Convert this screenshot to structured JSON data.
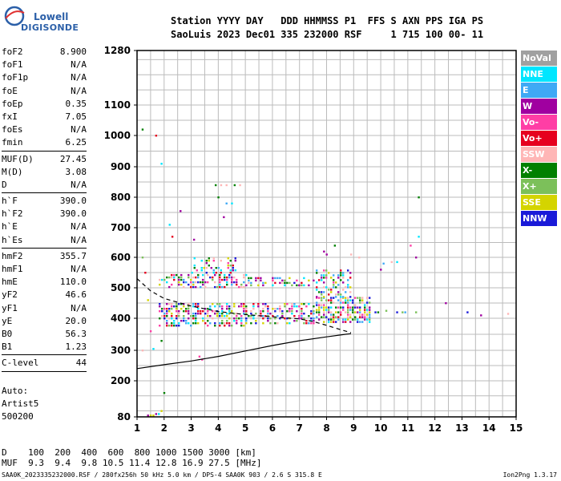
{
  "logo": {
    "line1": "Lowell",
    "line2": "DIGISONDE"
  },
  "header": {
    "line1": "Station YYYY DAY   DDD HHMMSS P1  FFS S AXN PPS IGA PS",
    "line2": "SaoLuis 2023 Dec01 335 232000 RSF     1 715 100 00- 11"
  },
  "params": {
    "group1": [
      {
        "name": "foF2",
        "value": "8.900"
      },
      {
        "name": "foF1",
        "value": "N/A"
      },
      {
        "name": "foF1p",
        "value": "N/A"
      },
      {
        "name": "foE",
        "value": "N/A"
      },
      {
        "name": "foEp",
        "value": "0.35"
      },
      {
        "name": "fxI",
        "value": "7.05"
      },
      {
        "name": "foEs",
        "value": "N/A"
      },
      {
        "name": "fmin",
        "value": "6.25"
      }
    ],
    "group2": [
      {
        "name": "MUF(D)",
        "value": "27.45"
      },
      {
        "name": "M(D)",
        "value": "3.08"
      },
      {
        "name": "D",
        "value": "N/A"
      }
    ],
    "group3": [
      {
        "name": "h`F",
        "value": "390.0"
      },
      {
        "name": "h`F2",
        "value": "390.0"
      },
      {
        "name": "h`E",
        "value": "N/A"
      },
      {
        "name": "h`Es",
        "value": "N/A"
      }
    ],
    "group4": [
      {
        "name": "hmF2",
        "value": "355.7"
      },
      {
        "name": "hmF1",
        "value": "N/A"
      },
      {
        "name": "hmE",
        "value": "110.0"
      },
      {
        "name": "yF2",
        "value": "46.6"
      },
      {
        "name": "yF1",
        "value": "N/A"
      },
      {
        "name": "yE",
        "value": "20.0"
      },
      {
        "name": "B0",
        "value": "56.3"
      },
      {
        "name": "B1",
        "value": "1.23"
      }
    ],
    "group5": [
      {
        "name": "C-level",
        "value": "44"
      }
    ]
  },
  "auto": {
    "line1": "Auto:",
    "line2": "Artist5",
    "line3": "500200"
  },
  "dmuf": {
    "d_line": "D    100  200  400  600  800 1000 1500 3000 [km]",
    "muf_line": "MUF  9.3  9.4  9.8 10.5 11.4 12.8 16.9 27.5 [MHz]"
  },
  "footer": {
    "left": "SAA0K_2023335232000.RSF / 280fx256h 50 kHz 5.0 km / DPS-4 SAA0K 903 / 2.6 S 315.8 E",
    "right": "Ion2Png 1.3.17"
  },
  "legend": [
    {
      "label": "NoVal",
      "color": "#a0a0a0"
    },
    {
      "label": "NNE",
      "color": "#00e6ff"
    },
    {
      "label": "E",
      "color": "#3fa9f5"
    },
    {
      "label": "W",
      "color": "#a000a0"
    },
    {
      "label": "Vo-",
      "color": "#ff3ea5"
    },
    {
      "label": "Vo+",
      "color": "#e6001e"
    },
    {
      "label": "SSW",
      "color": "#ffb6b6"
    },
    {
      "label": "X-",
      "color": "#008000"
    },
    {
      "label": "X+",
      "color": "#7cc05a"
    },
    {
      "label": "SSE",
      "color": "#d4d400"
    },
    {
      "label": "NNW",
      "color": "#1a1ad8"
    }
  ],
  "chart_data": {
    "type": "scatter",
    "title": "",
    "xlabel": "",
    "ylabel": "",
    "xlim": [
      1,
      15
    ],
    "ylim": [
      80,
      1280
    ],
    "x_ticks": [
      1,
      2,
      3,
      4,
      5,
      6,
      7,
      8,
      9,
      10,
      11,
      12,
      13,
      14,
      15
    ],
    "y_ticks": [
      80,
      200,
      300,
      400,
      500,
      600,
      700,
      800,
      900,
      1000,
      1100,
      1280
    ],
    "y_scale": "nonlinear (ionogram virtual height)",
    "grid": true,
    "trace_regions": [
      {
        "x": [
          1.8,
          5.0
        ],
        "y": [
          375,
          450
        ],
        "density": 0.55
      },
      {
        "x": [
          1.8,
          5.0
        ],
        "y": [
          500,
          545
        ],
        "density": 0.45
      },
      {
        "x": [
          3.0,
          4.7
        ],
        "y": [
          545,
          600
        ],
        "density": 0.3
      },
      {
        "x": [
          5.0,
          7.5
        ],
        "y": [
          380,
          450
        ],
        "density": 0.45
      },
      {
        "x": [
          5.0,
          7.5
        ],
        "y": [
          510,
          535
        ],
        "density": 0.35
      },
      {
        "x": [
          7.6,
          9.6
        ],
        "y": [
          390,
          470
        ],
        "density": 0.65
      },
      {
        "x": [
          7.6,
          8.9
        ],
        "y": [
          470,
          560
        ],
        "density": 0.35
      }
    ],
    "scattered_points": [
      [
        1.2,
        1020
      ],
      [
        1.7,
        1000
      ],
      [
        1.9,
        910
      ],
      [
        2.2,
        710
      ],
      [
        2.3,
        670
      ],
      [
        2.6,
        755
      ],
      [
        3.1,
        660
      ],
      [
        3.9,
        840
      ],
      [
        4.1,
        840
      ],
      [
        4.3,
        840
      ],
      [
        4.6,
        840
      ],
      [
        4.8,
        840
      ],
      [
        4.0,
        800
      ],
      [
        4.3,
        780
      ],
      [
        4.5,
        780
      ],
      [
        4.2,
        735
      ],
      [
        1.2,
        600
      ],
      [
        1.3,
        550
      ],
      [
        1.4,
        460
      ],
      [
        1.5,
        360
      ],
      [
        1.6,
        305
      ],
      [
        1.9,
        330
      ],
      [
        1.4,
        85
      ],
      [
        1.5,
        85
      ],
      [
        1.6,
        85
      ],
      [
        1.7,
        90
      ],
      [
        1.8,
        90
      ],
      [
        1.9,
        100
      ],
      [
        2.0,
        160
      ],
      [
        1.2,
        300
      ],
      [
        3.3,
        280
      ],
      [
        3.4,
        270
      ],
      [
        9.8,
        420
      ],
      [
        10.0,
        560
      ],
      [
        10.1,
        580
      ],
      [
        10.4,
        585
      ],
      [
        10.6,
        585
      ],
      [
        10.8,
        420
      ],
      [
        10.9,
        420
      ],
      [
        11.1,
        640
      ],
      [
        11.3,
        600
      ],
      [
        11.4,
        800
      ],
      [
        11.4,
        670
      ],
      [
        11.3,
        420
      ],
      [
        12.4,
        450
      ],
      [
        13.2,
        420
      ],
      [
        13.7,
        410
      ],
      [
        14.7,
        415
      ],
      [
        9.9,
        420
      ],
      [
        10.2,
        425
      ],
      [
        10.6,
        420
      ],
      [
        7.9,
        620
      ],
      [
        8.0,
        610
      ],
      [
        8.3,
        640
      ],
      [
        8.9,
        610
      ],
      [
        9.2,
        600
      ]
    ],
    "curves": [
      {
        "name": "",
        "style": "solid",
        "x": [
          1.0,
          2.0,
          3.0,
          4.0,
          5.0,
          6.0,
          7.0,
          8.0,
          8.7,
          8.9
        ],
        "y": [
          240,
          253,
          265,
          280,
          298,
          315,
          330,
          342,
          350,
          352
        ]
      },
      {
        "name": "",
        "style": "dashed",
        "x": [
          1.0,
          1.5,
          2.0,
          3.0,
          4.0,
          5.0,
          6.0,
          7.0,
          7.5,
          8.0,
          8.5,
          8.9
        ],
        "y": [
          530,
          490,
          465,
          440,
          422,
          412,
          405,
          398,
          390,
          378,
          365,
          355
        ]
      }
    ]
  }
}
